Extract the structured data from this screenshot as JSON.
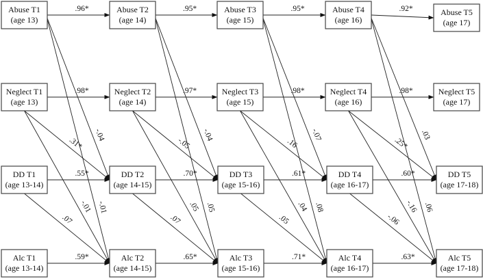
{
  "nodes": [
    {
      "id": "A1",
      "line1": "Abuse T1",
      "line2": "(age 13)"
    },
    {
      "id": "A2",
      "line1": "Abuse T2",
      "line2": "(age 14)"
    },
    {
      "id": "A3",
      "line1": "Abuse T3",
      "line2": "(age 15)"
    },
    {
      "id": "A4",
      "line1": "Abuse T4",
      "line2": "(age 16)"
    },
    {
      "id": "A5",
      "line1": "Abuse T5",
      "line2": "(age 17)"
    },
    {
      "id": "N1",
      "line1": "Neglect T1",
      "line2": "(age 13)"
    },
    {
      "id": "N2",
      "line1": "Neglect T2",
      "line2": "(age 14)"
    },
    {
      "id": "N3",
      "line1": "Neglect T3",
      "line2": "(age 15)"
    },
    {
      "id": "N4",
      "line1": "Neglect T4",
      "line2": "(age 16)"
    },
    {
      "id": "N5",
      "line1": "Neglect T5",
      "line2": "(age 17)"
    },
    {
      "id": "D1",
      "line1": "DD T1",
      "line2": "(age 13-14)"
    },
    {
      "id": "D2",
      "line1": "DD T2",
      "line2": "(age 14-15)"
    },
    {
      "id": "D3",
      "line1": "DD T3",
      "line2": "(age 15-16)"
    },
    {
      "id": "D4",
      "line1": "DD T4",
      "line2": "(age 16-17)"
    },
    {
      "id": "D5",
      "line1": "DD T5",
      "line2": "(age 17-18)"
    },
    {
      "id": "L1",
      "line1": "Alc T1",
      "line2": "(age 13-14)"
    },
    {
      "id": "L2",
      "line1": "Alc T2",
      "line2": "(age 14-15)"
    },
    {
      "id": "L3",
      "line1": "Alc T3",
      "line2": "(age 15-16)"
    },
    {
      "id": "L4",
      "line1": "Alc T4",
      "line2": "(age 16-17)"
    },
    {
      "id": "L5",
      "line1": "Alc T5",
      "line2": "(age 17-18)"
    }
  ],
  "edges": [
    {
      "from": "A1",
      "to": "A2",
      "label": ".96*"
    },
    {
      "from": "A2",
      "to": "A3",
      "label": ".95*"
    },
    {
      "from": "A3",
      "to": "A4",
      "label": ".95*"
    },
    {
      "from": "A4",
      "to": "A5",
      "label": ".92*"
    },
    {
      "from": "N1",
      "to": "N2",
      "label": ".98*"
    },
    {
      "from": "N2",
      "to": "N3",
      "label": ".97*"
    },
    {
      "from": "N3",
      "to": "N4",
      "label": ".98*"
    },
    {
      "from": "N4",
      "to": "N5",
      "label": ".98*"
    },
    {
      "from": "D1",
      "to": "D2",
      "label": ".55*"
    },
    {
      "from": "D2",
      "to": "D3",
      "label": ".70*"
    },
    {
      "from": "D3",
      "to": "D4",
      "label": ".61*"
    },
    {
      "from": "D4",
      "to": "D5",
      "label": ".60*"
    },
    {
      "from": "L1",
      "to": "L2",
      "label": ".59*"
    },
    {
      "from": "L2",
      "to": "L3",
      "label": ".65*"
    },
    {
      "from": "L3",
      "to": "L4",
      "label": ".71*"
    },
    {
      "from": "L4",
      "to": "L5",
      "label": ".63*"
    },
    {
      "from": "A1",
      "to": "D2",
      "label": "-.04"
    },
    {
      "from": "A1",
      "to": "L2",
      "label": "-.01"
    },
    {
      "from": "N1",
      "to": "D2",
      "label": ".31*"
    },
    {
      "from": "N1",
      "to": "L2",
      "label": "-.01"
    },
    {
      "from": "D1",
      "to": "L2",
      "label": ".07"
    },
    {
      "from": "A2",
      "to": "D3",
      "label": "-.04"
    },
    {
      "from": "A2",
      "to": "L3",
      "label": ".05"
    },
    {
      "from": "N2",
      "to": "D3",
      "label": "-.05"
    },
    {
      "from": "N2",
      "to": "L3",
      "label": ".05"
    },
    {
      "from": "D2",
      "to": "L3",
      "label": ".07"
    },
    {
      "from": "A3",
      "to": "D4",
      "label": "-.07"
    },
    {
      "from": "A3",
      "to": "L4",
      "label": ".08"
    },
    {
      "from": "N3",
      "to": "D4",
      "label": ".16"
    },
    {
      "from": "N3",
      "to": "L4",
      "label": ".04"
    },
    {
      "from": "D3",
      "to": "L4",
      "label": ".05"
    },
    {
      "from": "A4",
      "to": "D5",
      "label": ".03"
    },
    {
      "from": "A4",
      "to": "L5",
      "label": ".06"
    },
    {
      "from": "N4",
      "to": "D5",
      "label": ".25*"
    },
    {
      "from": "N4",
      "to": "L5",
      "label": "-.16"
    },
    {
      "from": "D4",
      "to": "L5",
      "label": "-.06"
    }
  ]
}
